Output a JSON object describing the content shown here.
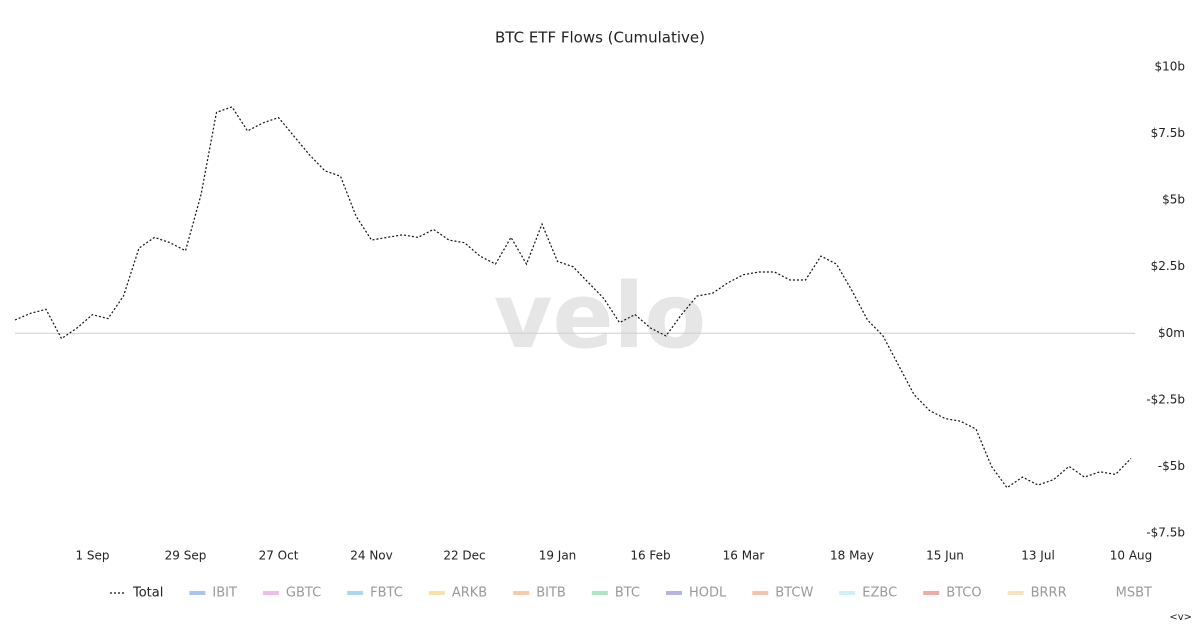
{
  "chart_data": {
    "type": "line",
    "title": "BTC ETF Flows (Cumulative)",
    "watermark": "velo",
    "corner_label": "<v>",
    "categories": [
      null,
      null,
      null,
      null,
      null,
      "1 Sep",
      null,
      null,
      null,
      null,
      null,
      "29 Sep",
      null,
      null,
      null,
      null,
      null,
      "27 Oct",
      null,
      null,
      null,
      null,
      null,
      "24 Nov",
      null,
      null,
      null,
      null,
      null,
      "22 Dec",
      null,
      null,
      null,
      null,
      null,
      "19 Jan",
      null,
      null,
      null,
      null,
      null,
      "16 Feb",
      null,
      null,
      null,
      null,
      null,
      "16 Mar",
      null,
      null,
      null,
      null,
      null,
      null,
      "18 May",
      null,
      null,
      null,
      null,
      null,
      "15 Jun",
      null,
      null,
      null,
      null,
      null,
      "13 Jul",
      null,
      null,
      null,
      null,
      null,
      "10 Aug"
    ],
    "series": [
      {
        "name": "Total",
        "color": "#111111",
        "values": [
          0.5,
          0.75,
          0.9,
          -0.2,
          0.2,
          0.7,
          0.55,
          1.4,
          3.2,
          3.6,
          3.4,
          3.1,
          5.2,
          8.3,
          8.5,
          7.6,
          7.9,
          8.1,
          7.4,
          6.7,
          6.1,
          5.9,
          4.4,
          3.5,
          3.6,
          3.7,
          3.6,
          3.9,
          3.5,
          3.4,
          2.9,
          2.6,
          3.6,
          2.6,
          4.1,
          2.7,
          2.5,
          1.9,
          1.3,
          0.4,
          0.7,
          0.2,
          -0.1,
          0.7,
          1.4,
          1.5,
          1.9,
          2.2,
          2.3,
          2.3,
          2.0,
          2.0,
          2.9,
          2.6,
          1.6,
          0.5,
          -0.1,
          -1.2,
          -2.3,
          -2.9,
          -3.2,
          -3.3,
          -3.6,
          -5.0,
          -5.8,
          -5.4,
          -5.7,
          -5.5,
          -5.0,
          -5.4,
          -5.2,
          -5.3,
          -4.7
        ]
      }
    ],
    "hidden_series": [
      {
        "name": "IBIT",
        "color": "#a9c4f0"
      },
      {
        "name": "GBTC",
        "color": "#f0bcf0"
      },
      {
        "name": "FBTC",
        "color": "#a8d8f0"
      },
      {
        "name": "ARKB",
        "color": "#f8e2a8"
      },
      {
        "name": "BITB",
        "color": "#f8caa8"
      },
      {
        "name": "BTC",
        "color": "#a8e8c0"
      },
      {
        "name": "HODL",
        "color": "#b4b4ea"
      },
      {
        "name": "BTCW",
        "color": "#f8c2aa"
      },
      {
        "name": "EZBC",
        "color": "#ccf2f2"
      },
      {
        "name": "BTCO",
        "color": "#f0aaaa"
      },
      {
        "name": "BRRR",
        "color": "#f8e2bc"
      },
      {
        "name": "MSBT"
      }
    ],
    "ylim": [
      -7.5,
      10
    ],
    "yticks": [
      {
        "value": 10,
        "label": "$10b"
      },
      {
        "value": 7.5,
        "label": "$7.5b"
      },
      {
        "value": 5,
        "label": "$5b"
      },
      {
        "value": 2.5,
        "label": "$2.5b"
      },
      {
        "value": 0,
        "label": "$0m"
      },
      {
        "value": -2.5,
        "label": "-$2.5b"
      },
      {
        "value": -5,
        "label": "-$5b"
      },
      {
        "value": -7.5,
        "label": "-$7.5b"
      }
    ],
    "legend": "bottom"
  }
}
